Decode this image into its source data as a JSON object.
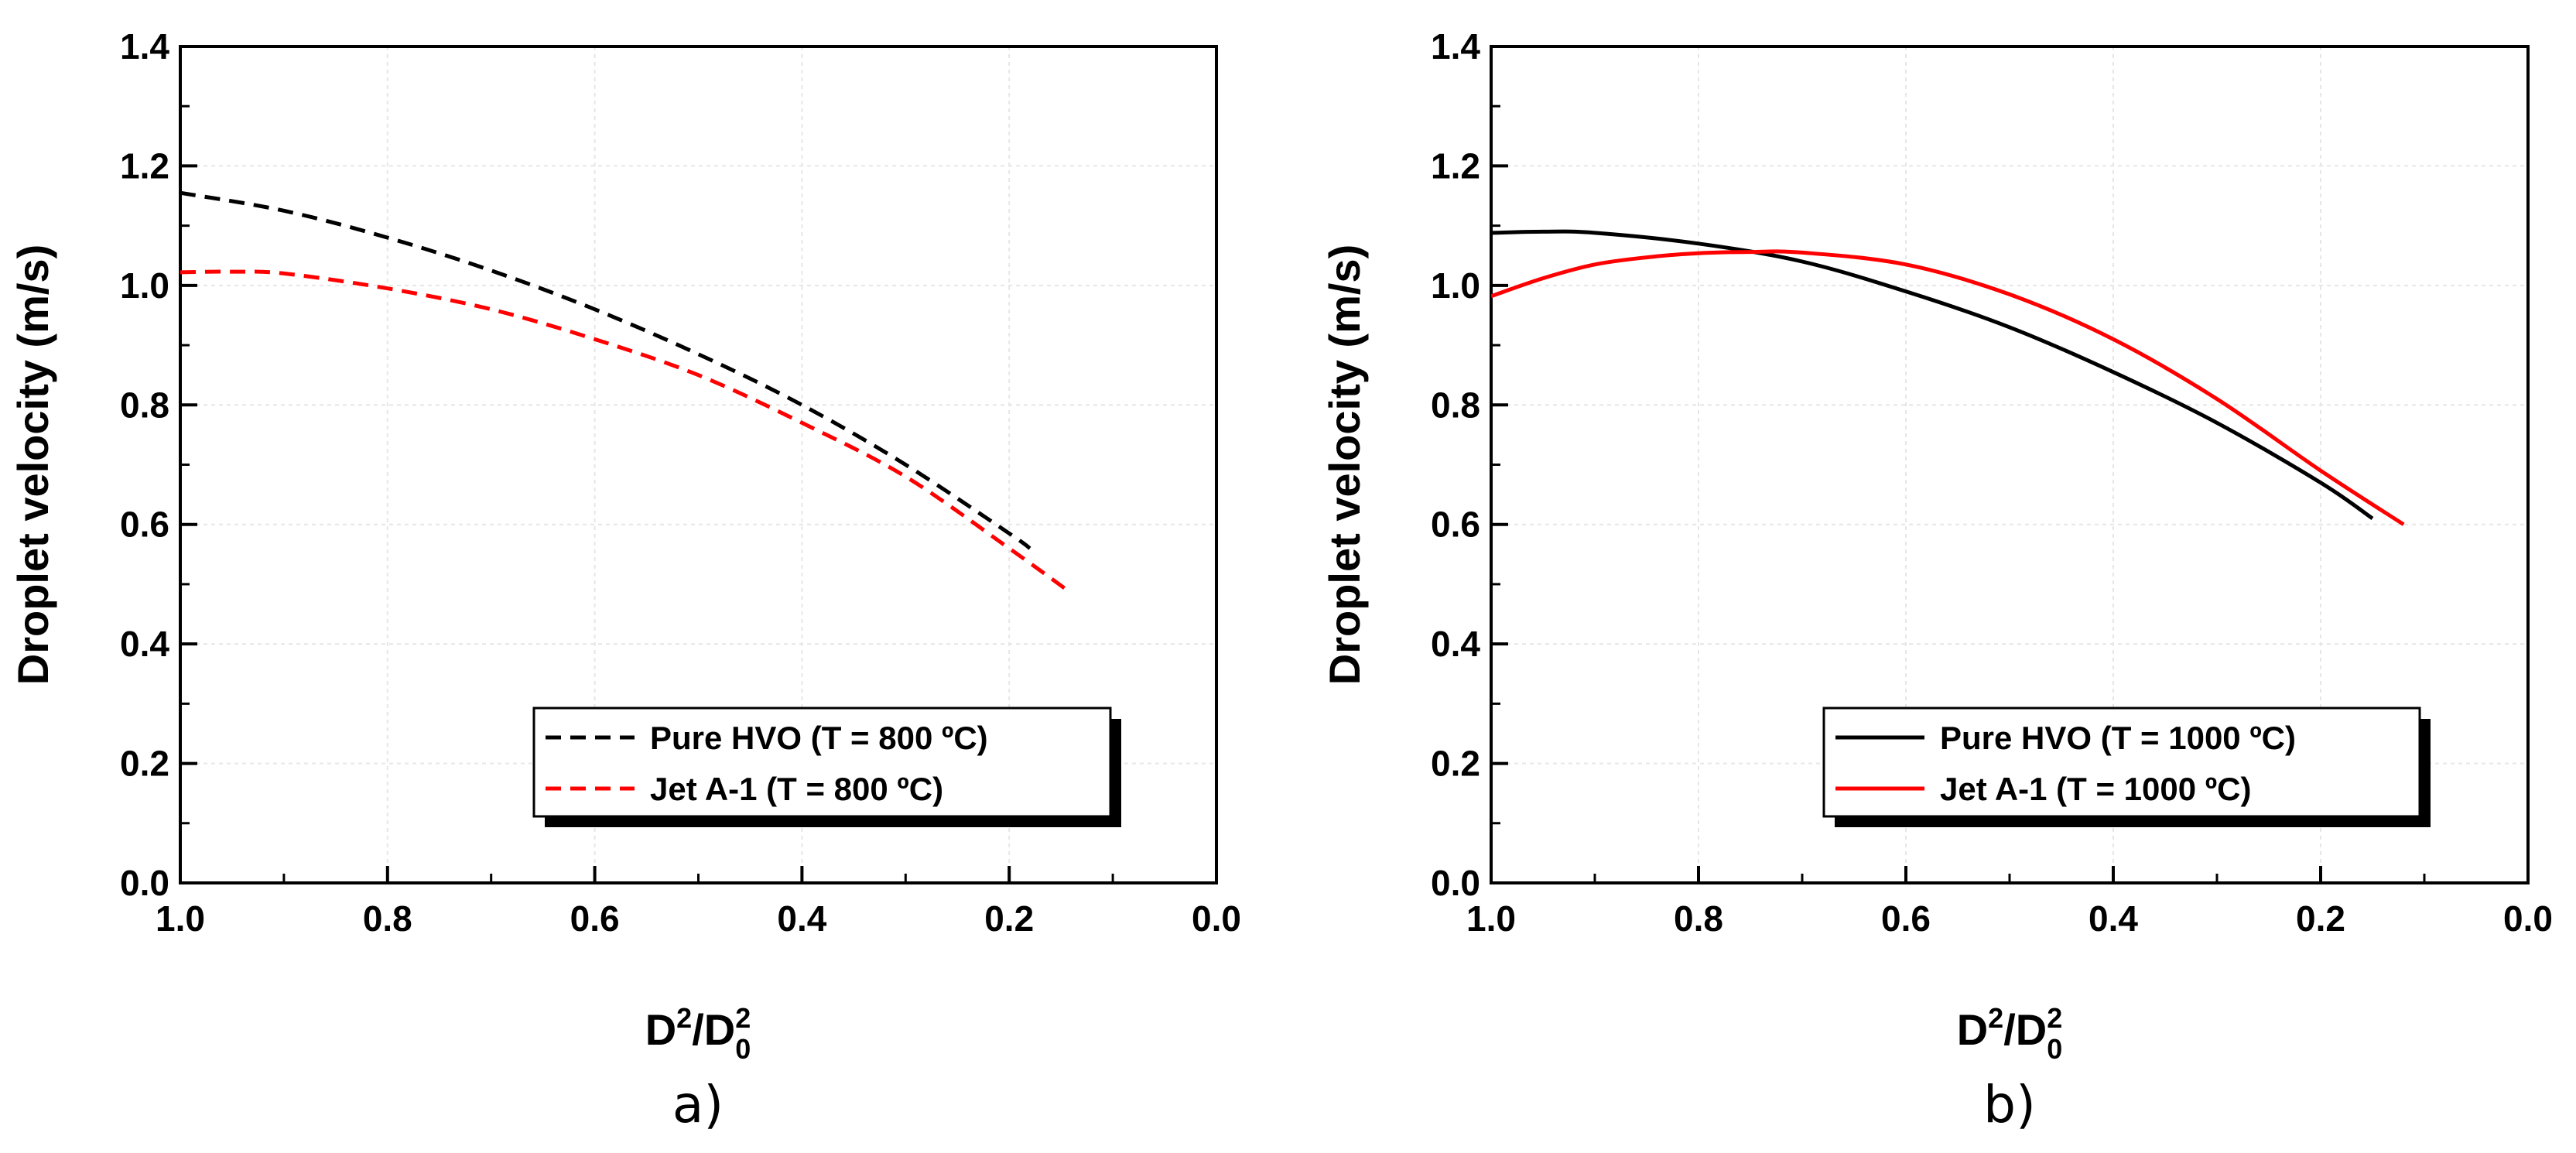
{
  "chart_data": [
    {
      "type": "line",
      "panel_label": "a)",
      "xlabel_main": "D",
      "xlabel_sup1": "2",
      "xlabel_mid": "/D",
      "xlabel_sup2": "2",
      "xlabel_sub": "0",
      "ylabel": "Droplet velocity (m/s)",
      "xlim": [
        1.0,
        0.0
      ],
      "ylim": [
        0.0,
        1.4
      ],
      "xticks": [
        "1.0",
        "0.8",
        "0.6",
        "0.4",
        "0.2",
        "0.0"
      ],
      "yticks": [
        "0.0",
        "0.2",
        "0.4",
        "0.6",
        "0.8",
        "1.0",
        "1.2",
        "1.4"
      ],
      "grid": true,
      "legend_position": "bottom-right",
      "series": [
        {
          "name": "Pure HVO (T = 800 ºC)",
          "color": "#000000",
          "style": "dashed",
          "x": [
            1.0,
            0.9,
            0.8,
            0.7,
            0.6,
            0.5,
            0.4,
            0.3,
            0.2,
            0.18
          ],
          "y": [
            1.155,
            1.125,
            1.08,
            1.025,
            0.96,
            0.885,
            0.8,
            0.7,
            0.585,
            0.56
          ]
        },
        {
          "name": "Jet A-1 (T = 800 ºC)",
          "color": "#ff0000",
          "style": "dashed",
          "x": [
            1.0,
            0.95,
            0.9,
            0.8,
            0.7,
            0.6,
            0.5,
            0.4,
            0.3,
            0.2,
            0.14
          ],
          "y": [
            1.022,
            1.023,
            1.02,
            0.995,
            0.96,
            0.91,
            0.85,
            0.77,
            0.68,
            0.56,
            0.485
          ]
        }
      ]
    },
    {
      "type": "line",
      "panel_label": "b)",
      "xlabel_main": "D",
      "xlabel_sup1": "2",
      "xlabel_mid": "/D",
      "xlabel_sup2": "2",
      "xlabel_sub": "0",
      "ylabel": "Droplet velocity (m/s)",
      "xlim": [
        1.0,
        0.0
      ],
      "ylim": [
        0.0,
        1.4
      ],
      "xticks": [
        "1.0",
        "0.8",
        "0.6",
        "0.4",
        "0.2",
        "0.0"
      ],
      "yticks": [
        "0.0",
        "0.2",
        "0.4",
        "0.6",
        "0.8",
        "1.0",
        "1.2",
        "1.4"
      ],
      "grid": true,
      "legend_position": "bottom-right",
      "series": [
        {
          "name": "Pure HVO (T = 1000 ºC)",
          "color": "#000000",
          "style": "solid",
          "x": [
            1.0,
            0.95,
            0.9,
            0.8,
            0.7,
            0.6,
            0.5,
            0.4,
            0.3,
            0.2,
            0.15
          ],
          "y": [
            1.088,
            1.09,
            1.088,
            1.07,
            1.04,
            0.99,
            0.93,
            0.855,
            0.77,
            0.67,
            0.61
          ]
        },
        {
          "name": "Jet A-1 (T = 1000 ºC)",
          "color": "#ff0000",
          "style": "solid",
          "x": [
            1.0,
            0.95,
            0.9,
            0.85,
            0.8,
            0.75,
            0.7,
            0.6,
            0.5,
            0.4,
            0.3,
            0.2,
            0.12
          ],
          "y": [
            0.982,
            1.012,
            1.035,
            1.047,
            1.054,
            1.056,
            1.055,
            1.035,
            0.985,
            0.91,
            0.81,
            0.69,
            0.6
          ]
        }
      ]
    }
  ]
}
